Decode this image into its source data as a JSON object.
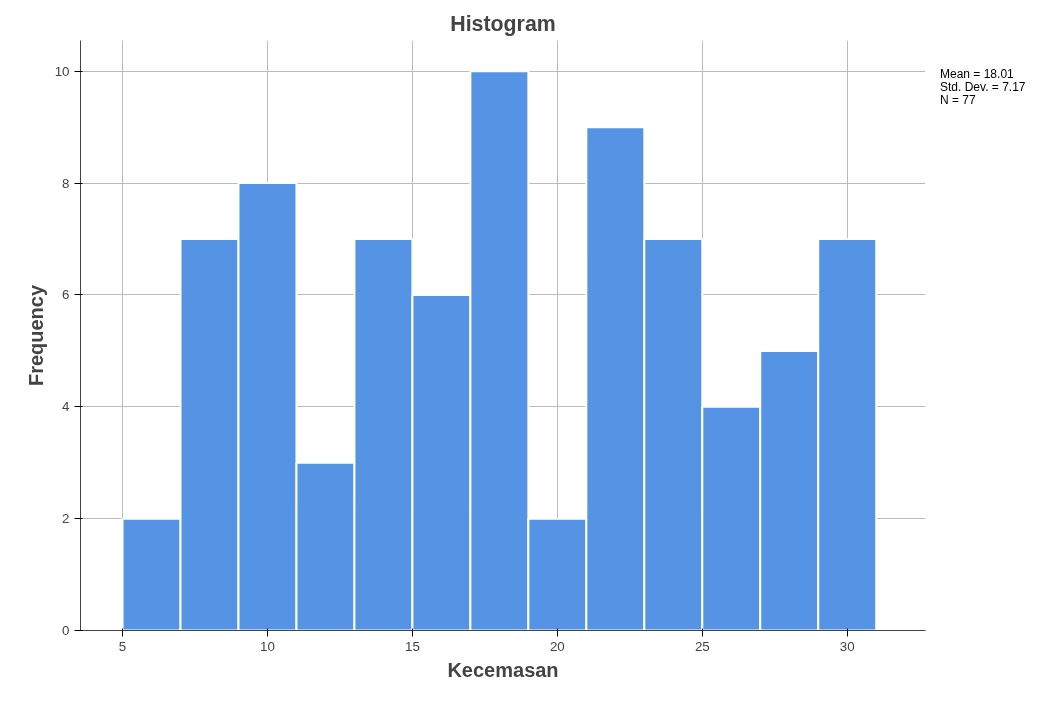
{
  "chart_data": {
    "type": "histogram",
    "title": "Histogram",
    "xlabel": "Kecemasan",
    "ylabel": "Frequency",
    "bins": [
      5,
      7,
      9,
      11,
      13,
      15,
      17,
      19,
      21,
      23,
      25,
      27,
      29,
      31
    ],
    "values": [
      2,
      7,
      8,
      3,
      7,
      6,
      10,
      2,
      9,
      7,
      4,
      5,
      7
    ],
    "color": "#5594e4",
    "xlim": [
      3.55,
      32.7
    ],
    "ylim": [
      0,
      10.55
    ],
    "xticks": [
      5,
      10,
      15,
      20,
      25,
      30
    ],
    "yticks": [
      0,
      2,
      4,
      6,
      8,
      10
    ],
    "grid": true,
    "annotations": [
      "Mean = 18.01",
      "Std. Dev. = 7.17",
      "N = 77"
    ]
  }
}
